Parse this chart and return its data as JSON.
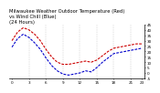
{
  "title": "Milwaukee Weather Outdoor Temperature (Red)\nvs Wind Chill (Blue)\n(24 Hours)",
  "background_color": "#ffffff",
  "red_temps": [
    30,
    38,
    42,
    40,
    36,
    30,
    22,
    15,
    10,
    8,
    8,
    9,
    10,
    11,
    10,
    12,
    16,
    20,
    23,
    24,
    25,
    26,
    27,
    27
  ],
  "blue_windchill": [
    24,
    32,
    36,
    33,
    28,
    22,
    14,
    7,
    2,
    -1,
    -2,
    -1,
    0,
    2,
    1,
    5,
    10,
    14,
    18,
    19,
    20,
    21,
    22,
    23
  ],
  "ylim": [
    -5,
    45
  ],
  "yticks": [
    -5,
    0,
    5,
    10,
    15,
    20,
    25,
    30,
    35,
    40,
    45
  ],
  "ytick_labels": [
    "-5",
    "0",
    "5",
    "10",
    "15",
    "20",
    "25",
    "30",
    "35",
    "40",
    "45"
  ],
  "xtick_positions": [
    0,
    3,
    6,
    9,
    12,
    15,
    18,
    21,
    23
  ],
  "xtick_labels": [
    "0",
    "3",
    "6",
    "9",
    "12",
    "15",
    "18",
    "21",
    "23"
  ],
  "grid_color": "#aaaaaa",
  "red_color": "#cc0000",
  "blue_color": "#0000cc",
  "black_color": "#000000",
  "title_fontsize": 3.8,
  "tick_fontsize": 3.0,
  "line_width": 0.8
}
